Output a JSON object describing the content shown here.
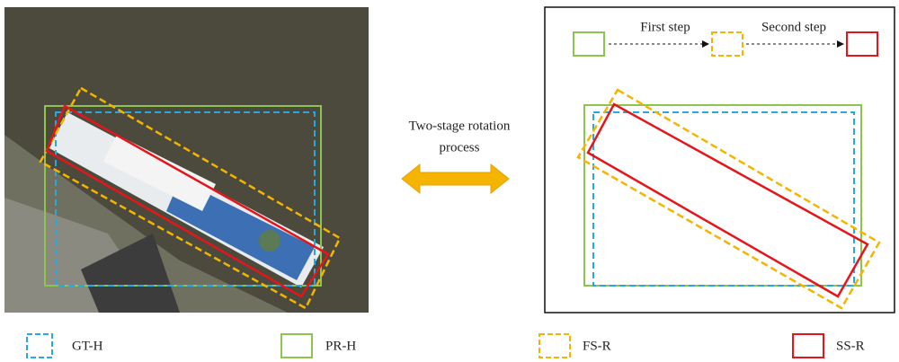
{
  "center_label": {
    "lines": [
      "Two-stage rotation",
      "process"
    ]
  },
  "steps": {
    "first": "First step",
    "second": "Second step"
  },
  "legend": [
    "GT-H",
    "PR-H",
    "FS-R",
    "SS-R"
  ]
}
